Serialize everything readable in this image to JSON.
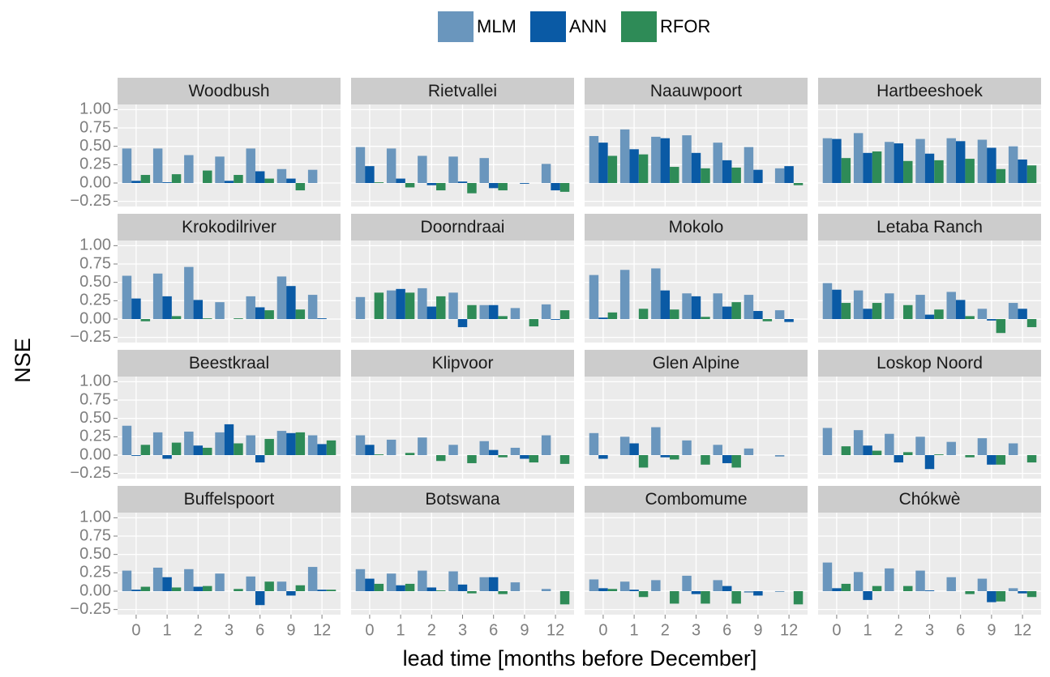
{
  "chart_data": {
    "type": "bar",
    "xlabel": "lead time [months before December]",
    "ylabel": "NSE",
    "categories": [
      "0",
      "1",
      "2",
      "3",
      "6",
      "9",
      "12"
    ],
    "ylim": [
      -0.32,
      1.07
    ],
    "yticks": [
      {
        "value": -0.25,
        "label": "−0.25"
      },
      {
        "value": 0,
        "label": "0.00"
      },
      {
        "value": 0.25,
        "label": "0.25"
      },
      {
        "value": 0.5,
        "label": "0.50"
      },
      {
        "value": 0.75,
        "label": "0.75"
      },
      {
        "value": 1,
        "label": "1.00"
      }
    ],
    "grid": true,
    "series": [
      {
        "name": "MLM",
        "color": "#6a96bd"
      },
      {
        "name": "ANN",
        "color": "#0a5aa5"
      },
      {
        "name": "RFOR",
        "color": "#2e8b57"
      }
    ],
    "panels": [
      {
        "title": "Woodbush",
        "values": [
          [
            0.47,
            0.47,
            0.38,
            0.36,
            0.47,
            0.19,
            0.18
          ],
          [
            0.03,
            0.01,
            0,
            0.03,
            0.16,
            0.06,
            0
          ],
          [
            0.11,
            0.12,
            0.17,
            0.11,
            0.06,
            -0.1,
            0
          ]
        ]
      },
      {
        "title": "Rietvallei",
        "values": [
          [
            0.49,
            0.47,
            0.37,
            0.36,
            0.34,
            0,
            0.26
          ],
          [
            0.23,
            0.06,
            -0.03,
            0.02,
            -0.07,
            -0.01,
            -0.1
          ],
          [
            0.01,
            -0.06,
            -0.1,
            -0.14,
            -0.1,
            0,
            -0.12
          ]
        ]
      },
      {
        "title": "Naauwpoort",
        "values": [
          [
            0.64,
            0.73,
            0.63,
            0.65,
            0.55,
            0.49,
            0.2
          ],
          [
            0.55,
            0.46,
            0.61,
            0.41,
            0.31,
            0.18,
            0.23
          ],
          [
            0.37,
            0.39,
            0.22,
            0.2,
            0.21,
            0,
            -0.03
          ]
        ]
      },
      {
        "title": "Hartbeeshoek",
        "values": [
          [
            0.61,
            0.68,
            0.56,
            0.6,
            0.61,
            0.59,
            0.5
          ],
          [
            0.6,
            0.41,
            0.54,
            0.4,
            0.57,
            0.48,
            0.32
          ],
          [
            0.34,
            0.43,
            0.3,
            0.31,
            0.33,
            0.19,
            0.24
          ]
        ]
      },
      {
        "title": "Krokodilriver",
        "values": [
          [
            0.59,
            0.62,
            0.71,
            0.23,
            0.31,
            0.58,
            0.33
          ],
          [
            0.28,
            0.31,
            0.26,
            0,
            0.16,
            0.45,
            0.01
          ],
          [
            -0.03,
            0.04,
            0.01,
            0.01,
            0.12,
            0.13,
            0
          ]
        ]
      },
      {
        "title": "Doorndraai",
        "values": [
          [
            0.3,
            0.39,
            0.42,
            0.36,
            0.19,
            0.15,
            0.2
          ],
          [
            0,
            0.41,
            0.17,
            -0.11,
            0.19,
            0,
            -0.01
          ],
          [
            0.36,
            0.36,
            0.31,
            0.19,
            0.04,
            -0.1,
            0.12
          ]
        ]
      },
      {
        "title": "Mokolo",
        "values": [
          [
            0.6,
            0.67,
            0.69,
            0.35,
            0.35,
            0.33,
            0.12
          ],
          [
            0.02,
            0,
            0.39,
            0.31,
            0.17,
            0.11,
            -0.04
          ],
          [
            0.09,
            0.14,
            0.13,
            0.03,
            0.23,
            -0.03,
            0
          ]
        ]
      },
      {
        "title": "Letaba Ranch",
        "values": [
          [
            0.49,
            0.39,
            0.35,
            0.33,
            0.37,
            0.14,
            0.22
          ],
          [
            0.4,
            0.14,
            0,
            0.06,
            0.26,
            -0.02,
            0.14
          ],
          [
            0.22,
            0.22,
            0.19,
            0.13,
            0.04,
            -0.19,
            -0.11
          ]
        ]
      },
      {
        "title": "Beestkraal",
        "values": [
          [
            0.4,
            0.31,
            0.32,
            0.31,
            0.27,
            0.33,
            0.27
          ],
          [
            -0.01,
            -0.05,
            0.13,
            0.42,
            -0.1,
            0.3,
            0.15
          ],
          [
            0.14,
            0.17,
            0.1,
            0.16,
            0.22,
            0.31,
            0.2
          ]
        ]
      },
      {
        "title": "Klipvoor",
        "values": [
          [
            0.27,
            0.21,
            0.24,
            0.14,
            0.19,
            0.1,
            0.27
          ],
          [
            0.14,
            0,
            0,
            0,
            0.07,
            -0.05,
            0
          ],
          [
            0.01,
            0.03,
            -0.08,
            -0.11,
            -0.03,
            -0.1,
            -0.12
          ]
        ]
      },
      {
        "title": "Glen Alpine",
        "values": [
          [
            0.3,
            0.25,
            0.38,
            0.2,
            0.14,
            0.09,
            -0.02
          ],
          [
            -0.05,
            0.16,
            -0.03,
            0,
            -0.11,
            0,
            0
          ],
          [
            0,
            -0.17,
            -0.06,
            -0.13,
            -0.17,
            0,
            0
          ]
        ]
      },
      {
        "title": "Loskop Noord",
        "values": [
          [
            0.37,
            0.34,
            0.29,
            0.25,
            0.18,
            0.23,
            0.16
          ],
          [
            0,
            0.13,
            -0.1,
            -0.19,
            0,
            -0.13,
            0
          ],
          [
            0.12,
            0.06,
            0.04,
            0.01,
            -0.03,
            -0.13,
            -0.1
          ]
        ]
      },
      {
        "title": "Buffelspoort",
        "values": [
          [
            0.28,
            0.32,
            0.3,
            0.24,
            0.2,
            0.13,
            0.33
          ],
          [
            0.02,
            0.19,
            0.06,
            0,
            -0.19,
            -0.06,
            0.02
          ],
          [
            0.06,
            0.05,
            0.07,
            0.03,
            0.13,
            0.08,
            0.02
          ]
        ]
      },
      {
        "title": "Botswana",
        "values": [
          [
            0.3,
            0.24,
            0.28,
            0.27,
            0.19,
            0.12,
            0.03
          ],
          [
            0.17,
            0.08,
            0.05,
            0.09,
            0.19,
            0,
            0
          ],
          [
            0.1,
            0.1,
            0.01,
            -0.03,
            -0.04,
            0,
            -0.18
          ]
        ]
      },
      {
        "title": "Combomume",
        "values": [
          [
            0.16,
            0.13,
            0.15,
            0.21,
            0.15,
            -0.02,
            -0.01
          ],
          [
            0.04,
            0.02,
            0,
            -0.04,
            0.07,
            -0.06,
            0
          ],
          [
            0.03,
            -0.08,
            -0.17,
            -0.17,
            -0.17,
            0,
            -0.18
          ]
        ]
      },
      {
        "title": "Chókwè",
        "values": [
          [
            0.39,
            0.26,
            0.31,
            0.28,
            0.19,
            0.17,
            0.04
          ],
          [
            0.04,
            -0.12,
            0,
            0.01,
            0,
            -0.15,
            -0.03
          ],
          [
            0.1,
            0.07,
            0.07,
            0,
            -0.04,
            -0.14,
            -0.08
          ]
        ]
      }
    ]
  }
}
